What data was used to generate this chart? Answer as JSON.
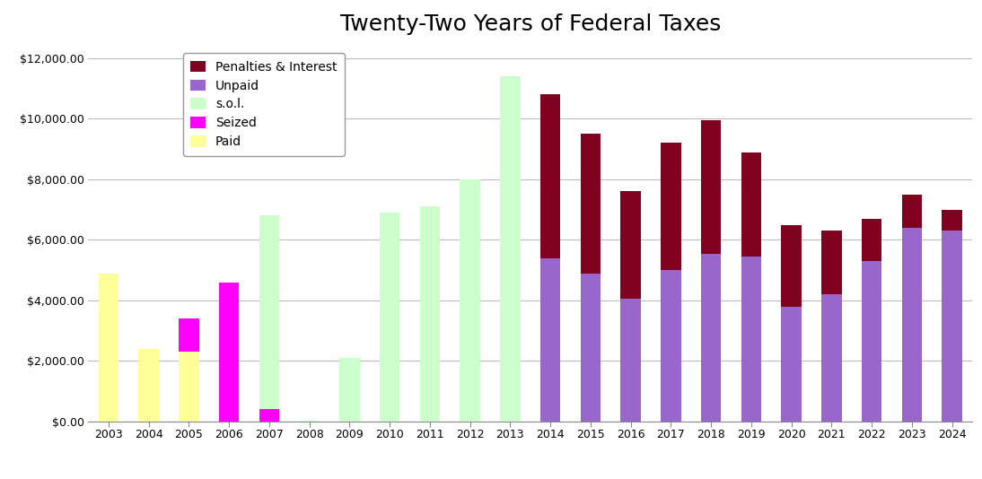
{
  "title": "Twenty-Two Years of Federal Taxes",
  "years": [
    2003,
    2004,
    2005,
    2006,
    2007,
    2008,
    2009,
    2010,
    2011,
    2012,
    2013,
    2014,
    2015,
    2016,
    2017,
    2018,
    2019,
    2020,
    2021,
    2022,
    2023,
    2024
  ],
  "paid": [
    4900,
    2400,
    2300,
    0,
    0,
    0,
    0,
    0,
    0,
    0,
    0,
    0,
    0,
    0,
    0,
    0,
    0,
    0,
    0,
    0,
    0,
    0
  ],
  "seized": [
    0,
    0,
    1100,
    4600,
    400,
    0,
    0,
    0,
    0,
    0,
    0,
    0,
    0,
    0,
    0,
    0,
    0,
    0,
    0,
    0,
    0,
    0
  ],
  "sol": [
    0,
    0,
    0,
    0,
    6400,
    30,
    2100,
    6900,
    7100,
    8000,
    11400,
    0,
    0,
    0,
    0,
    0,
    0,
    0,
    0,
    0,
    0,
    0
  ],
  "unpaid": [
    0,
    0,
    0,
    0,
    0,
    0,
    0,
    0,
    0,
    0,
    0,
    5400,
    4900,
    4050,
    5000,
    5550,
    5450,
    3800,
    4200,
    5300,
    6400,
    6300
  ],
  "penalties": [
    0,
    0,
    0,
    0,
    0,
    0,
    0,
    0,
    0,
    0,
    0,
    5400,
    4600,
    3550,
    4200,
    4400,
    3450,
    2700,
    2100,
    1400,
    1100,
    700
  ],
  "color_paid": "#ffff99",
  "color_seized": "#ff00ff",
  "color_sol": "#ccffcc",
  "color_unpaid": "#9966cc",
  "color_penalties": "#800020",
  "ylim_max": 12500,
  "yticks": [
    0,
    2000,
    4000,
    6000,
    8000,
    10000,
    12000
  ],
  "background_color": "#ffffff",
  "grid_color": "#bbbbbb",
  "bar_width": 0.5,
  "title_fontsize": 18,
  "legend_fontsize": 10,
  "tick_fontsize": 9
}
